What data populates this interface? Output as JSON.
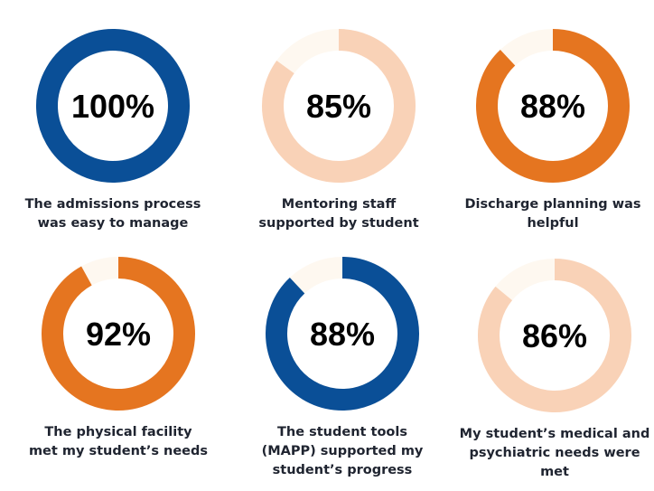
{
  "chart_data": {
    "type": "donut-grid",
    "colors": {
      "blue": "#0a4f97",
      "orange": "#e57520",
      "peach": "#f9d2b7",
      "track": "#fef8f0"
    },
    "items": [
      {
        "value": 100,
        "label": "100%",
        "color": "blue",
        "caption_lines": [
          "The admissions process",
          "was easy to manage"
        ]
      },
      {
        "value": 85,
        "label": "85%",
        "color": "peach",
        "caption_lines": [
          "Mentoring staff",
          "supported by student"
        ]
      },
      {
        "value": 88,
        "label": "88%",
        "color": "orange",
        "caption_lines": [
          "Discharge planning was",
          "helpful"
        ]
      },
      {
        "value": 92,
        "label": "92%",
        "color": "orange",
        "caption_lines": [
          "The physical facility",
          "met my student’s needs"
        ]
      },
      {
        "value": 88,
        "label": "88%",
        "color": "blue",
        "caption_lines": [
          "The student tools",
          "(MAPP) supported my",
          "student’s progress"
        ]
      },
      {
        "value": 86,
        "label": "86%",
        "color": "peach",
        "caption_lines": [
          "My student’s medical and",
          "psychiatric needs were",
          "met"
        ]
      }
    ]
  }
}
